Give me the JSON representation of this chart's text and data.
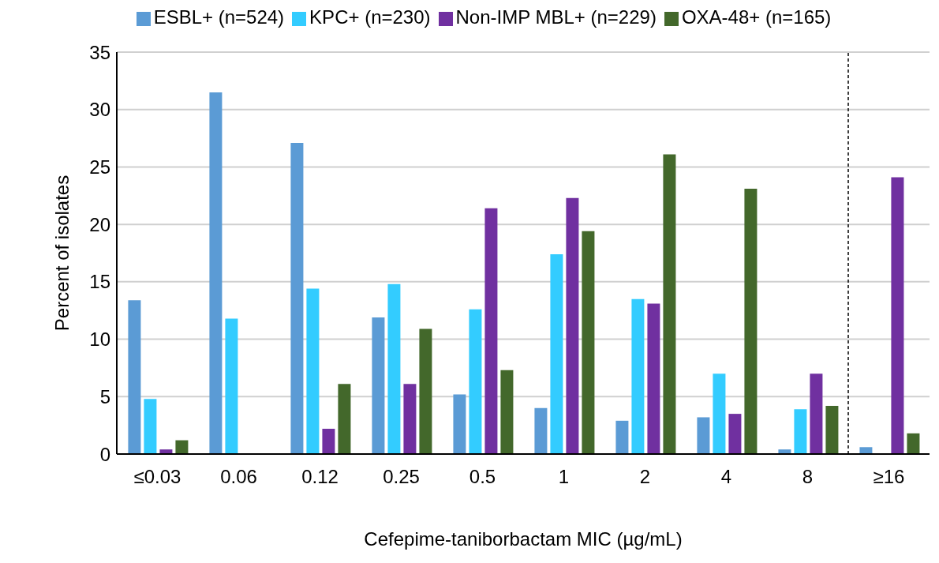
{
  "chart_data": {
    "type": "bar",
    "xlabel": "Cefepime-taniborbactam MIC (µg/mL)",
    "ylabel": "Percent of isolates",
    "categories": [
      "≤0.03",
      "0.06",
      "0.12",
      "0.25",
      "0.5",
      "1",
      "2",
      "4",
      "8",
      "≥16"
    ],
    "series": [
      {
        "name": "ESBL+ (n=524)",
        "color": "#5b9bd5",
        "values": [
          13.4,
          31.5,
          27.1,
          11.9,
          5.2,
          4.0,
          2.9,
          3.2,
          0.4,
          0.6
        ]
      },
      {
        "name": "KPC+ (n=230)",
        "color": "#33ccff",
        "values": [
          4.8,
          11.8,
          14.4,
          14.8,
          12.6,
          17.4,
          13.5,
          7.0,
          3.9,
          null
        ]
      },
      {
        "name": "Non-IMP MBL+ (n=229)",
        "color": "#7030a0",
        "values": [
          0.4,
          null,
          2.2,
          6.1,
          21.4,
          22.3,
          13.1,
          3.5,
          7.0,
          24.1
        ]
      },
      {
        "name": "OXA-48+ (n=165)",
        "color": "#43682b",
        "values": [
          1.2,
          null,
          6.1,
          10.9,
          7.3,
          19.4,
          26.1,
          23.1,
          4.2,
          1.8
        ]
      }
    ],
    "ylim": [
      0,
      35
    ],
    "yticks": [
      0,
      5,
      10,
      15,
      20,
      25,
      30,
      35
    ],
    "grid": "y",
    "legend": "top",
    "ref_lines": [
      {
        "axis": "x",
        "value": "≥16",
        "line_style": "dashed",
        "color": "#000000"
      }
    ]
  }
}
